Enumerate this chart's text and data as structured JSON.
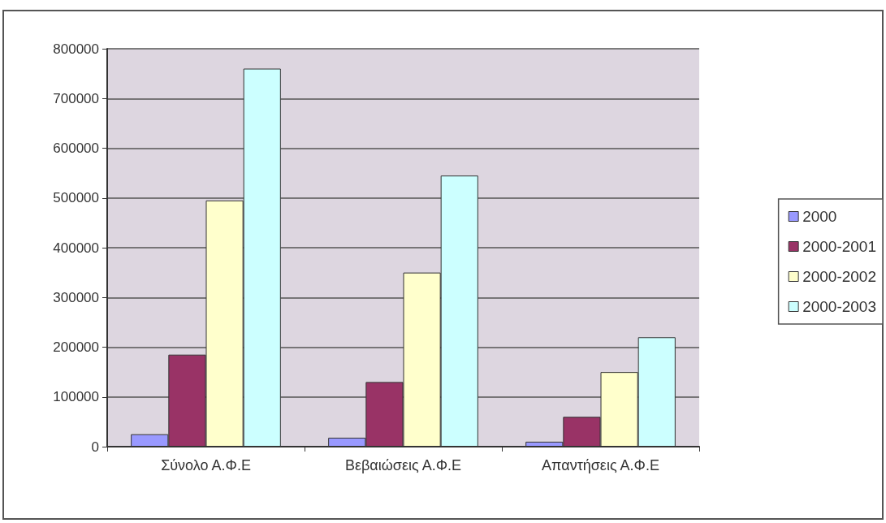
{
  "chart_data": {
    "type": "bar",
    "categories": [
      "Σύνολο Α.Φ.Ε",
      "Βεβαιώσεις Α.Φ.Ε",
      "Απαντήσεις Α.Φ.Ε"
    ],
    "series": [
      {
        "name": "2000",
        "color": "#9999ff",
        "values": [
          25000,
          18000,
          10000
        ]
      },
      {
        "name": "2000-2001",
        "color": "#993366",
        "values": [
          185000,
          130000,
          60000
        ]
      },
      {
        "name": "2000-2002",
        "color": "#ffffcc",
        "values": [
          495000,
          350000,
          150000
        ]
      },
      {
        "name": "2000-2003",
        "color": "#ccffff",
        "values": [
          760000,
          545000,
          220000
        ]
      }
    ],
    "ylim": [
      0,
      800000
    ],
    "yticks": [
      0,
      100000,
      200000,
      300000,
      400000,
      500000,
      600000,
      700000,
      800000
    ],
    "grid": "y",
    "legend": "right"
  }
}
